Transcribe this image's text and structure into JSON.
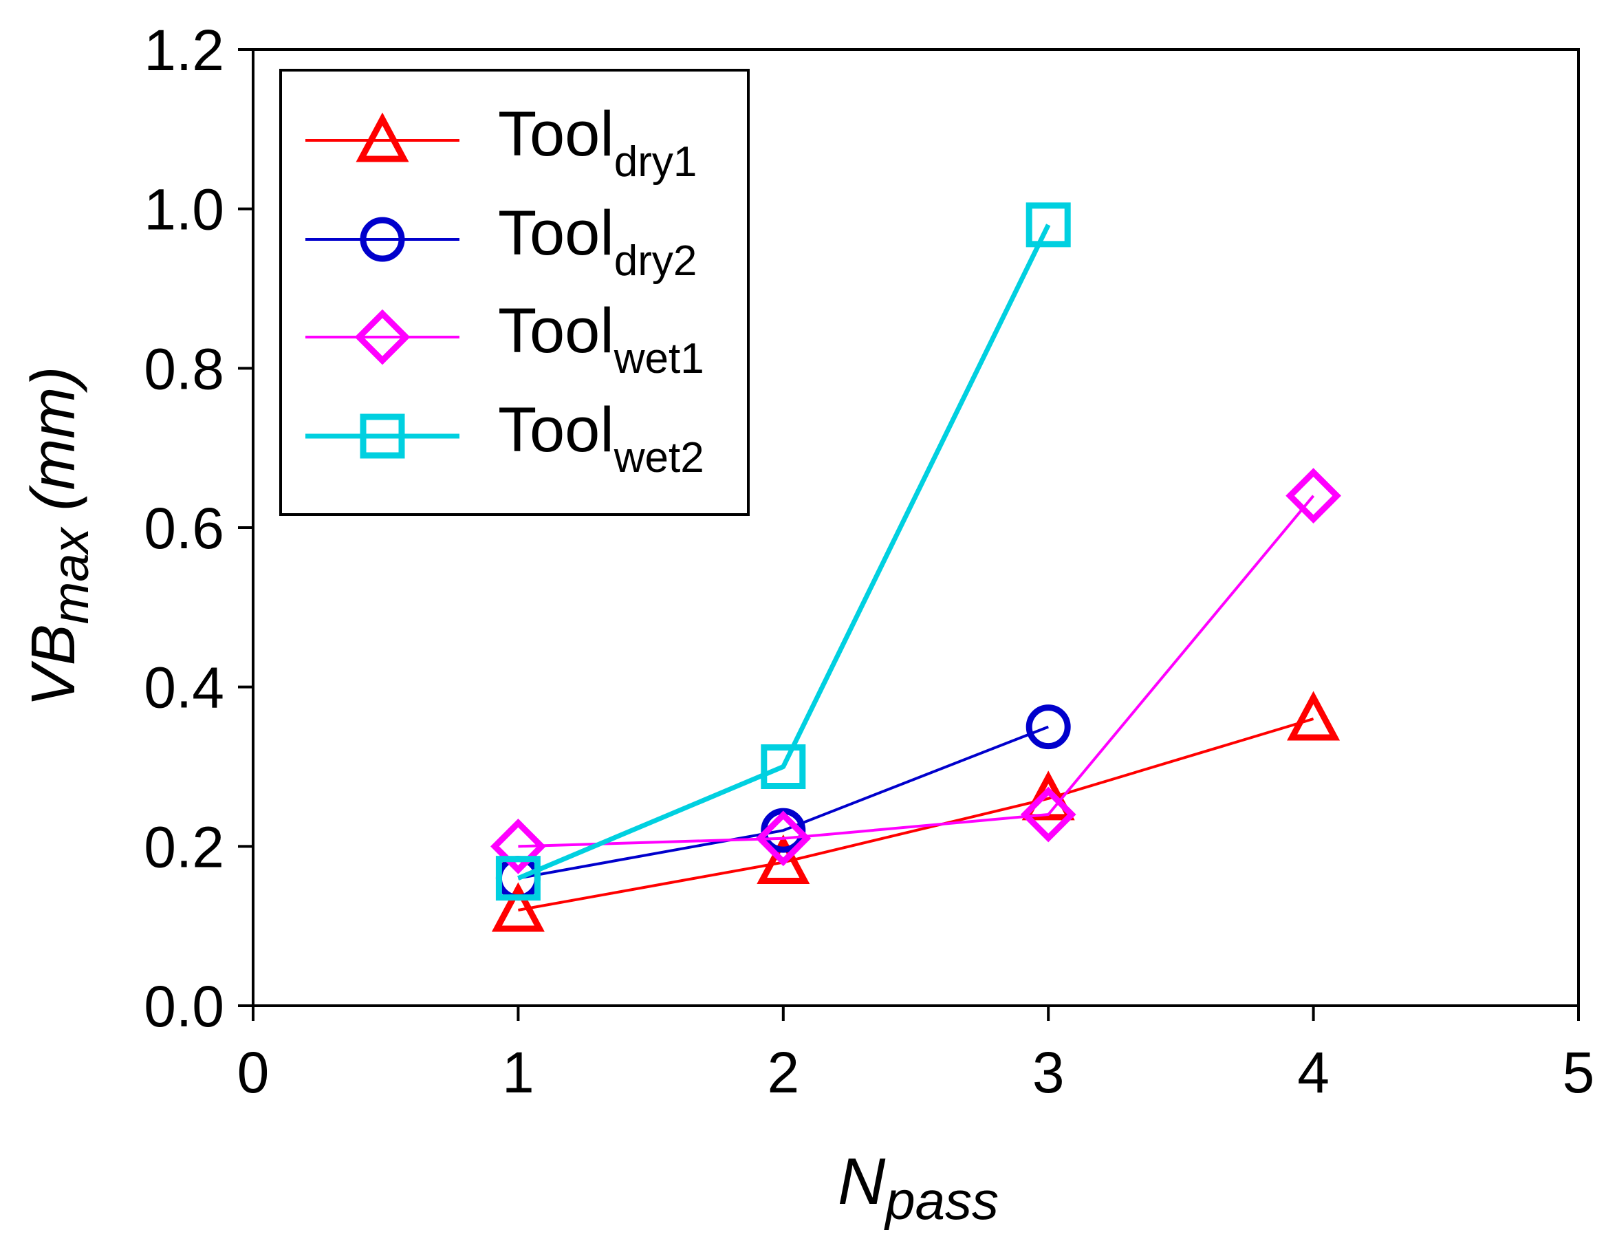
{
  "chart_data": {
    "type": "line",
    "title": "",
    "xlabel": {
      "main": "N",
      "sub": "pass"
    },
    "ylabel": {
      "main": "VB",
      "sub": "max",
      "unit": " (mm)"
    },
    "xlim": [
      0,
      5
    ],
    "ylim": [
      0,
      1.2
    ],
    "xticks": [
      0,
      1,
      2,
      3,
      4,
      5
    ],
    "xtick_labels": [
      "0",
      "1",
      "2",
      "3",
      "4",
      "5"
    ],
    "yticks": [
      0,
      0.2,
      0.4,
      0.6,
      0.8,
      1.0,
      1.2
    ],
    "ytick_labels": [
      "0.0",
      "0.2",
      "0.4",
      "0.6",
      "0.8",
      "1.0",
      "1.2"
    ],
    "grid": false,
    "legend_position": "top-left",
    "series": [
      {
        "name": "Tool",
        "sub": "dry1",
        "color": "#ff0000",
        "marker": "triangle",
        "x": [
          1,
          2,
          3,
          4
        ],
        "values": [
          0.12,
          0.18,
          0.26,
          0.36
        ]
      },
      {
        "name": "Tool",
        "sub": "dry2",
        "color": "#0000cc",
        "marker": "circle",
        "x": [
          1,
          2,
          3
        ],
        "values": [
          0.16,
          0.22,
          0.35
        ]
      },
      {
        "name": "Tool",
        "sub": "wet1",
        "color": "#ff00ff",
        "marker": "diamond",
        "x": [
          1,
          2,
          3,
          4
        ],
        "values": [
          0.2,
          0.21,
          0.24,
          0.64
        ]
      },
      {
        "name": "Tool",
        "sub": "wet2",
        "color": "#00d0e0",
        "marker": "square",
        "x": [
          1,
          2,
          3
        ],
        "values": [
          0.16,
          0.3,
          0.98
        ]
      }
    ]
  }
}
